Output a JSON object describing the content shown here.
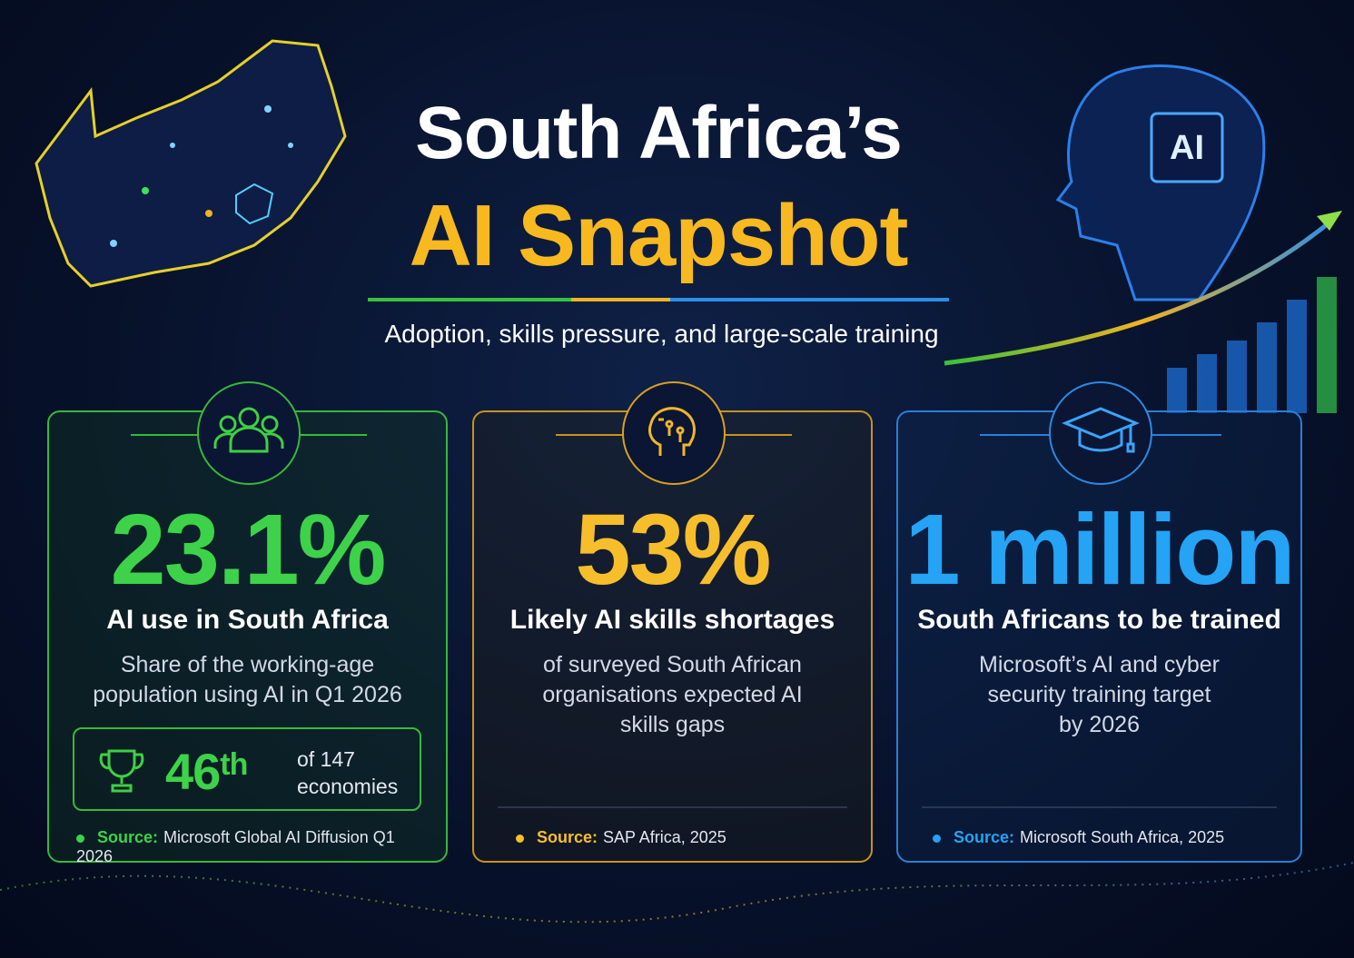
{
  "header": {
    "title_line1": "South Africa’s",
    "title_line2": "AI Snapshot",
    "subtitle": "Adoption, skills pressure, and large-scale training"
  },
  "badge": "AI",
  "cards": [
    {
      "stat": "23.1%",
      "heading": "AI use in South Africa",
      "description": [
        "Share of the working-age",
        "population using AI in Q1 2026"
      ],
      "rank": {
        "number": "46",
        "suffix": "th",
        "of": "of 147",
        "unit": "economies"
      },
      "source_label": "Source:",
      "source": "Microsoft Global AI Diffusion Q1 2026"
    },
    {
      "stat": "53%",
      "heading": "Likely AI skills shortages",
      "description": [
        "of surveyed South African",
        "organisations expected AI",
        "skills gaps"
      ],
      "source_label": "Source:",
      "source": "SAP Africa, 2025"
    },
    {
      "stat": "1 million",
      "heading": "South Africans to be trained",
      "description": [
        "Microsoft’s AI and cyber",
        "security training target",
        "by 2026"
      ],
      "source_label": "Source:",
      "source": "Microsoft South Africa, 2025"
    }
  ]
}
